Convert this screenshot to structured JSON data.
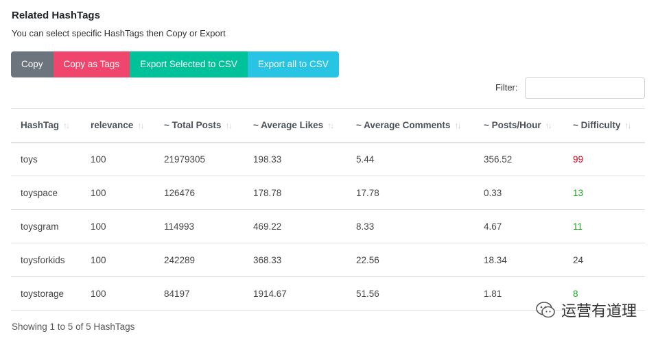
{
  "header": {
    "title": "Related HashTags",
    "subtitle": "You can select specific HashTags then Copy or Export"
  },
  "toolbar": {
    "copy": "Copy",
    "copy_tags": "Copy as Tags",
    "export_selected": "Export Selected to CSV",
    "export_all": "Export all to CSV"
  },
  "filter": {
    "label": "Filter:",
    "value": ""
  },
  "table": {
    "columns": [
      "HashTag",
      "relevance",
      "~ Total Posts",
      "~ Average Likes",
      "~ Average Comments",
      "~ Posts/Hour",
      "~ Difficulty"
    ],
    "rows": [
      [
        "toys",
        "100",
        "21979305",
        "198.33",
        "5.44",
        "356.52",
        "99"
      ],
      [
        "toyspace",
        "100",
        "126476",
        "178.78",
        "17.78",
        "0.33",
        "13"
      ],
      [
        "toysgram",
        "100",
        "114993",
        "469.22",
        "8.33",
        "4.67",
        "11"
      ],
      [
        "toysforkids",
        "100",
        "242289",
        "368.33",
        "22.56",
        "18.34",
        "24"
      ],
      [
        "toystorage",
        "100",
        "84197",
        "1914.67",
        "51.56",
        "1.81",
        "8"
      ]
    ]
  },
  "footer": {
    "summary": "Showing 1 to 5 of 5 HashTags"
  },
  "watermark": {
    "text": "运营有道理"
  },
  "colors": {
    "difficulty_high": "#d0021b",
    "difficulty_low": "#19a31b",
    "copy": "#6c757d",
    "copy_tags": "#f0466e",
    "export_selected": "#00c29a",
    "export_all": "#27c5e3"
  }
}
